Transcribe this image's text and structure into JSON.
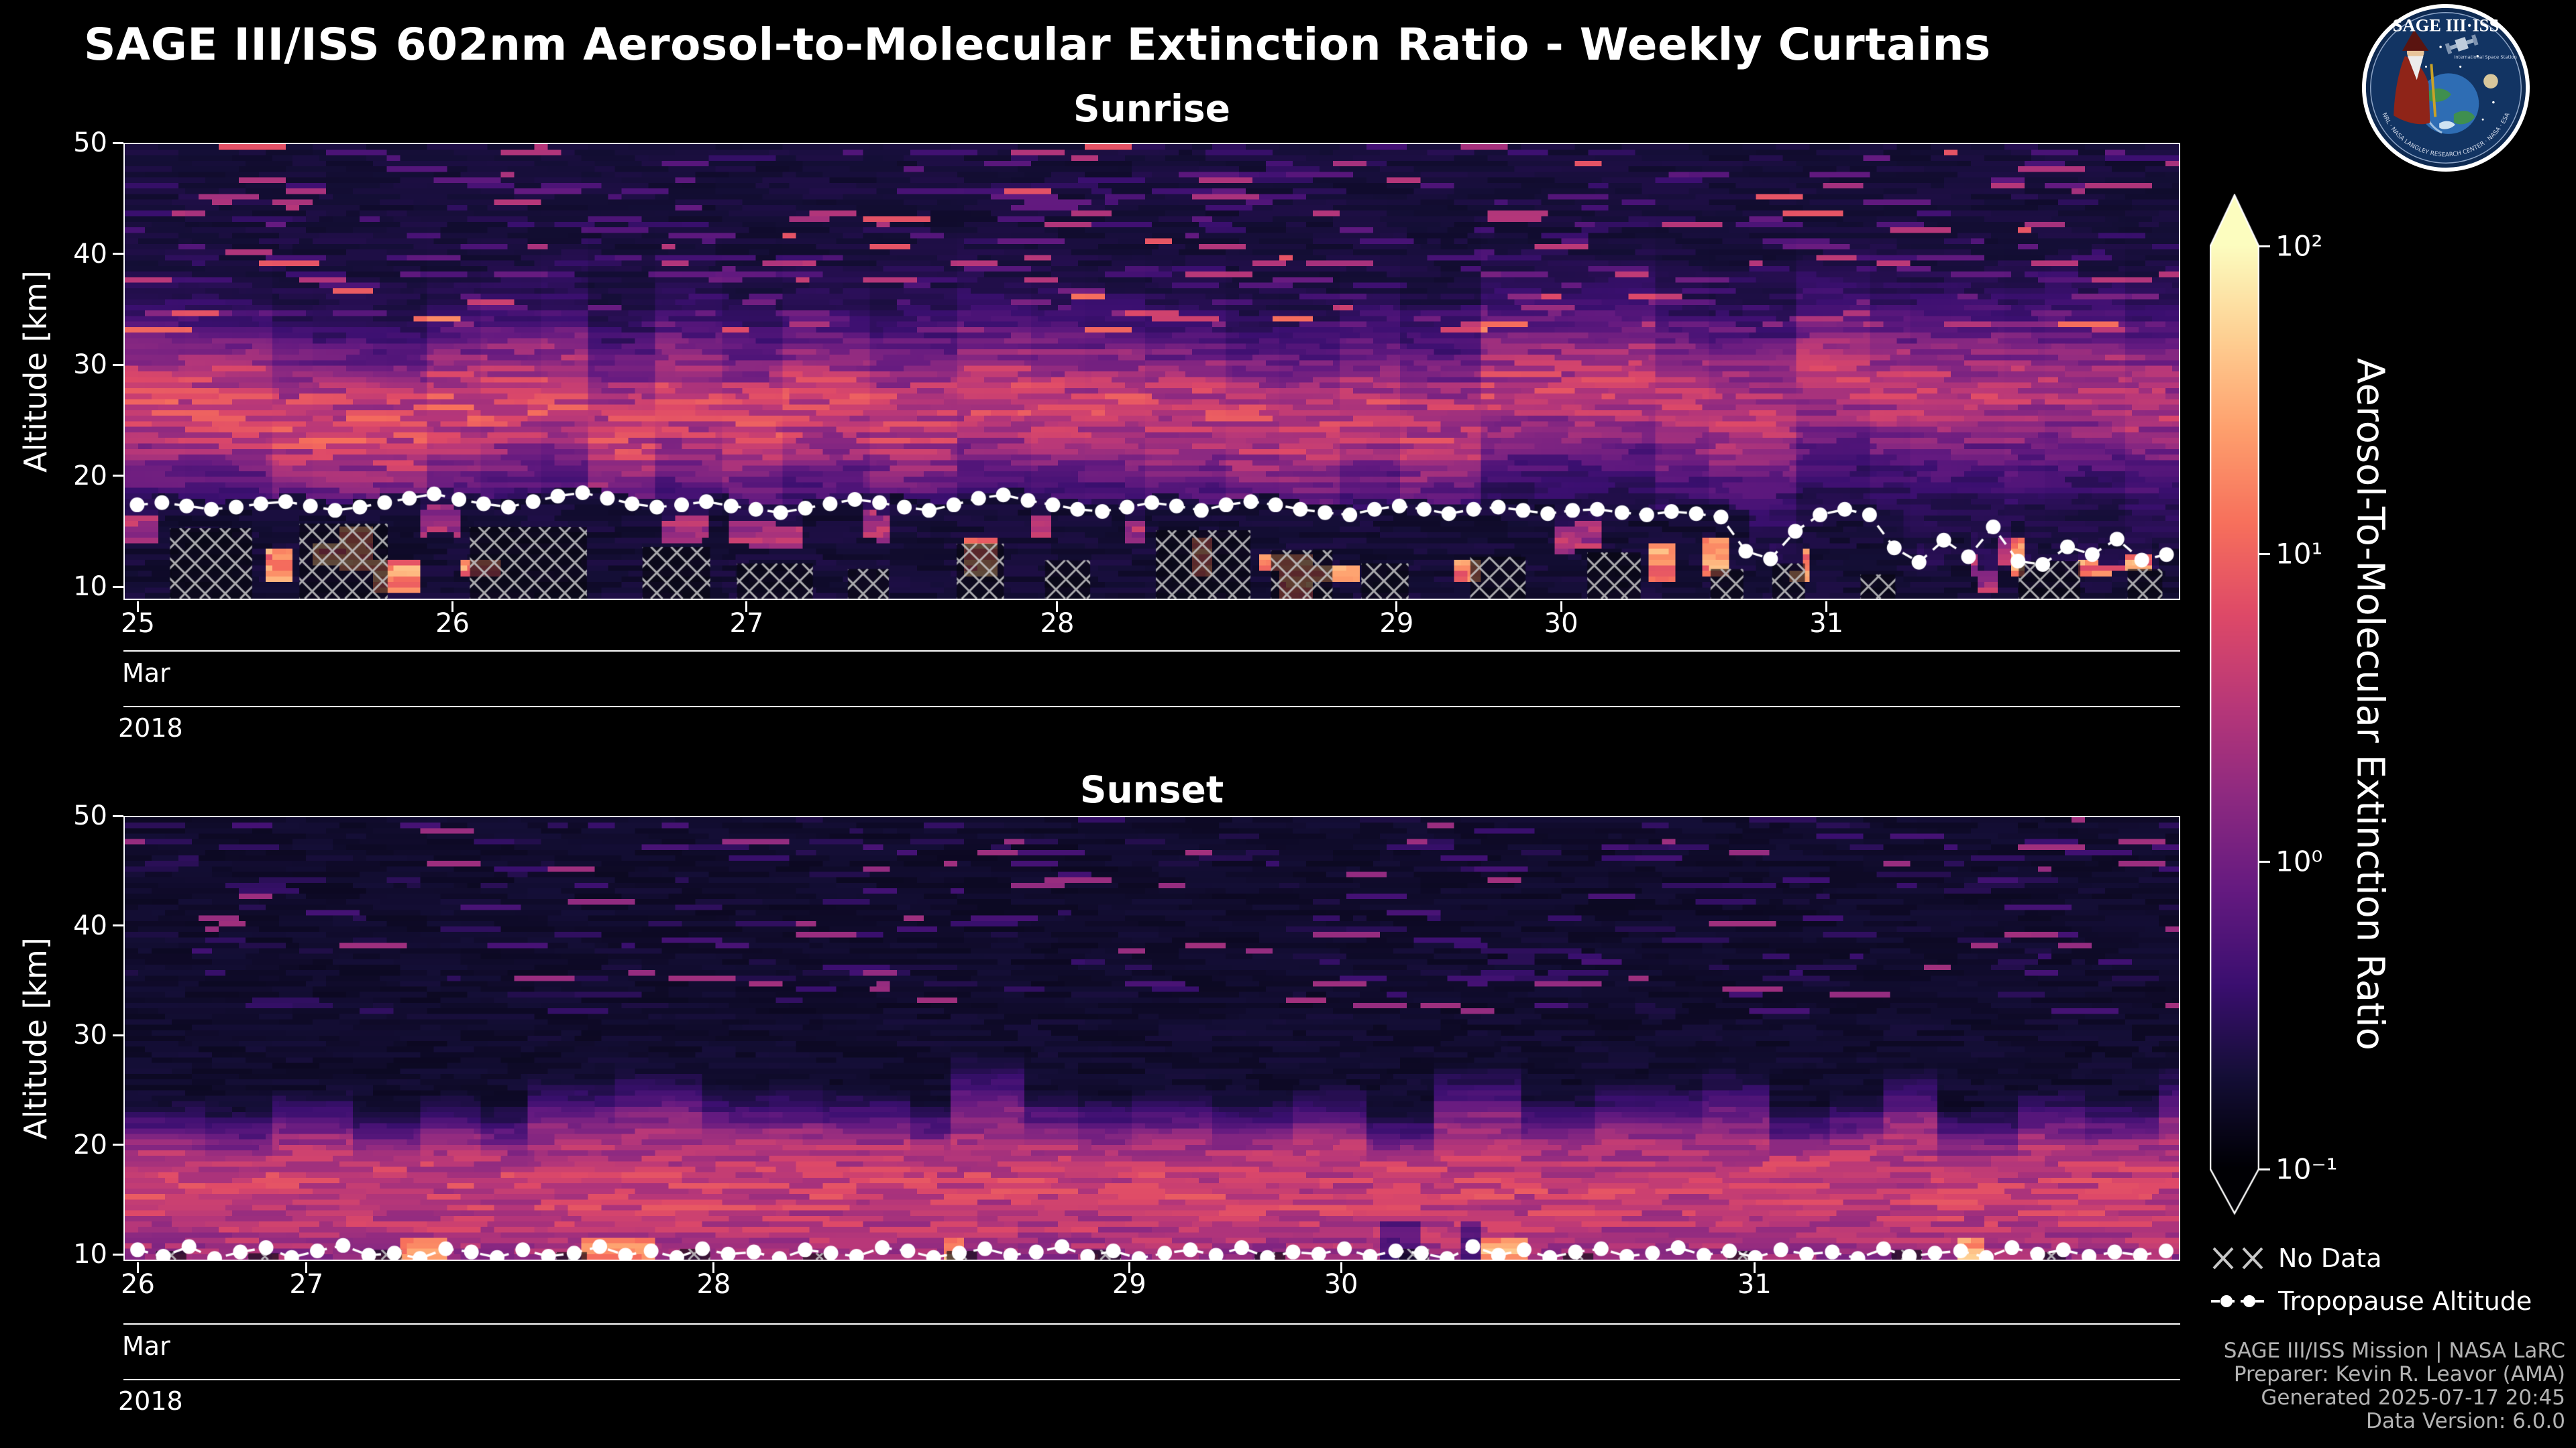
{
  "title": "SAGE III/ISS 602nm Aerosol-to-Molecular Extinction Ratio - Weekly Curtains",
  "logo": {
    "title": "SAGE III·ISS",
    "subtitle": "International Space Station",
    "ring_text": "NRL · NASA LANGLEY RESEARCH CENTER · NASA · ESA"
  },
  "panels": [
    {
      "title": "Sunrise",
      "ylabel": "Altitude [km]",
      "month": "Mar",
      "year": "2018"
    },
    {
      "title": "Sunset",
      "ylabel": "Altitude [km]",
      "month": "Mar",
      "year": "2018"
    }
  ],
  "colorbar": {
    "label": "Aerosol-To-Molecular Extinction Ratio",
    "scale": "log",
    "range": [
      0.1,
      100
    ],
    "extend": "both",
    "colormap": "magma",
    "ticks": [
      {
        "label": "10²",
        "value": 100
      },
      {
        "label": "10¹",
        "value": 10
      },
      {
        "label": "10⁰",
        "value": 1
      },
      {
        "label": "10⁻¹",
        "value": 0.1
      }
    ],
    "colors": [
      "#000004",
      "#140e36",
      "#3b0f70",
      "#641a80",
      "#8c2981",
      "#b73779",
      "#de4968",
      "#f7705c",
      "#fe9f6d",
      "#fecf92",
      "#fcfdbf"
    ]
  },
  "legend": [
    {
      "label": "No Data"
    },
    {
      "label": "Tropopause Altitude"
    }
  ],
  "credits": [
    "SAGE III/ISS Mission | NASA LaRC",
    "Preparer: Kevin R. Leavor (AMA)",
    "Generated 2025-07-17 20:45",
    "Data Version: 6.0.0"
  ],
  "chart_data": [
    {
      "type": "heatmap",
      "panel": "Sunrise",
      "x": {
        "tick_labels": [
          "25",
          "26",
          "27",
          "28",
          "29",
          "30",
          "31"
        ],
        "tick_positions": [
          0.007,
          0.16,
          0.303,
          0.454,
          0.619,
          0.699,
          0.828
        ],
        "month": "Mar",
        "year": "2018",
        "note": "x is successive occultation profiles; date tick spacing is non-uniform"
      },
      "y": {
        "label": "Altitude [km]",
        "range": [
          8.8,
          50
        ],
        "ticks": [
          10,
          20,
          30,
          40,
          50
        ]
      },
      "value": {
        "scale": "log",
        "range": [
          0.1,
          100
        ],
        "label": "Aerosol-To-Molecular Extinction Ratio"
      },
      "band": {
        "center_km": 26.5,
        "halfwidth_km": 6.5,
        "note": "enhanced stratospheric aerosol layer ~20-32 km, ratio ~1"
      },
      "tropopause_km": [
        17.3,
        17.5,
        17.2,
        16.9,
        17.1,
        17.4,
        17.6,
        17.2,
        16.8,
        17.1,
        17.5,
        17.9,
        18.3,
        17.8,
        17.4,
        17.1,
        17.6,
        18.1,
        18.4,
        17.9,
        17.4,
        17.1,
        17.3,
        17.6,
        17.2,
        16.9,
        16.6,
        17.0,
        17.4,
        17.8,
        17.5,
        17.1,
        16.8,
        17.3,
        17.9,
        18.2,
        17.7,
        17.3,
        16.9,
        16.7,
        17.1,
        17.5,
        17.2,
        16.8,
        17.3,
        17.6,
        17.3,
        16.9,
        16.6,
        16.4,
        16.9,
        17.2,
        16.9,
        16.5,
        16.9,
        17.1,
        16.8,
        16.5,
        16.8,
        16.9,
        16.6,
        16.4,
        16.7,
        16.5,
        16.2,
        13.1,
        12.4,
        14.9,
        16.4,
        16.9,
        16.4,
        13.4,
        12.1,
        14.1,
        12.6,
        15.3,
        12.2,
        11.9,
        13.5,
        12.8,
        14.2,
        12.3,
        12.8
      ],
      "no_data_blocks": [
        [
          0.022,
          0.062,
          8.8,
          15.2
        ],
        [
          0.085,
          0.128,
          8.8,
          15.6
        ],
        [
          0.168,
          0.225,
          8.8,
          15.3
        ],
        [
          0.252,
          0.285,
          8.8,
          13.5
        ],
        [
          0.298,
          0.335,
          8.8,
          12.0
        ],
        [
          0.352,
          0.372,
          8.8,
          11.5
        ],
        [
          0.405,
          0.428,
          8.8,
          13.8
        ],
        [
          0.448,
          0.47,
          8.8,
          12.3
        ],
        [
          0.502,
          0.548,
          8.8,
          15.0
        ],
        [
          0.558,
          0.588,
          8.8,
          13.2
        ],
        [
          0.602,
          0.625,
          8.8,
          12.0
        ],
        [
          0.655,
          0.682,
          8.8,
          12.6
        ],
        [
          0.712,
          0.738,
          8.8,
          13.0
        ],
        [
          0.772,
          0.788,
          8.8,
          11.5
        ],
        [
          0.802,
          0.818,
          8.8,
          12.0
        ],
        [
          0.845,
          0.862,
          8.8,
          11.0
        ],
        [
          0.922,
          0.952,
          8.8,
          12.2
        ],
        [
          0.975,
          0.992,
          8.8,
          11.5
        ]
      ],
      "seed": 20180325
    },
    {
      "type": "heatmap",
      "panel": "Sunset",
      "x": {
        "tick_labels": [
          "26",
          "27",
          "28",
          "29",
          "30",
          "31"
        ],
        "tick_positions": [
          0.007,
          0.089,
          0.287,
          0.489,
          0.592,
          0.793
        ],
        "month": "Mar",
        "year": "2018",
        "note": "x is successive occultation profiles; date tick spacing is non-uniform"
      },
      "y": {
        "label": "Altitude [km]",
        "range": [
          9.4,
          50
        ],
        "ticks": [
          10,
          20,
          30,
          40,
          50
        ]
      },
      "value": {
        "scale": "log",
        "range": [
          0.1,
          100
        ],
        "label": "Aerosol-To-Molecular Extinction Ratio"
      },
      "band": {
        "center_km": 16.0,
        "halfwidth_km": 10.0,
        "note": "broad enhanced aerosol region ~10-26 km with ragged upper edge"
      },
      "tropopause_km": [
        10.3,
        9.7,
        10.6,
        9.5,
        10.1,
        10.5,
        9.6,
        10.2,
        10.7,
        9.8,
        10.0,
        9.5,
        10.4,
        10.1,
        9.6,
        10.3,
        9.7,
        10.0,
        10.6,
        9.8,
        10.2,
        9.6,
        10.4,
        9.9,
        10.1,
        9.5,
        10.3,
        10.0,
        9.7,
        10.5,
        10.2,
        9.6,
        10.0,
        10.4,
        9.8,
        10.1,
        10.6,
        9.7,
        10.2,
        9.5,
        10.0,
        10.3,
        9.8,
        10.5,
        9.6,
        10.1,
        9.9,
        10.4,
        9.7,
        10.2,
        10.0,
        9.5,
        10.6,
        9.8,
        10.3,
        9.6,
        10.1,
        10.4,
        9.7,
        10.0,
        10.5,
        9.8,
        10.2,
        9.6,
        10.3,
        9.9,
        10.1,
        9.5,
        10.4,
        9.7,
        10.0,
        10.2,
        9.6,
        10.5,
        9.9,
        10.3,
        9.7,
        10.1,
        9.8,
        10.2
      ],
      "no_data_blocks": [
        [
          0.015,
          0.03,
          9.4,
          10.2
        ],
        [
          0.06,
          0.075,
          9.4,
          10.0
        ],
        [
          0.12,
          0.135,
          9.4,
          10.3
        ],
        [
          0.21,
          0.225,
          9.4,
          10.1
        ],
        [
          0.27,
          0.285,
          9.4,
          10.4
        ],
        [
          0.33,
          0.345,
          9.4,
          10.0
        ],
        [
          0.4,
          0.415,
          9.4,
          10.2
        ],
        [
          0.47,
          0.485,
          9.4,
          10.3
        ],
        [
          0.55,
          0.565,
          9.4,
          10.1
        ],
        [
          0.62,
          0.635,
          9.4,
          10.4
        ],
        [
          0.7,
          0.715,
          9.4,
          10.0
        ],
        [
          0.78,
          0.795,
          9.4,
          10.2
        ],
        [
          0.86,
          0.875,
          9.4,
          10.3
        ],
        [
          0.93,
          0.945,
          9.4,
          10.1
        ]
      ],
      "seed": 20180326
    }
  ]
}
